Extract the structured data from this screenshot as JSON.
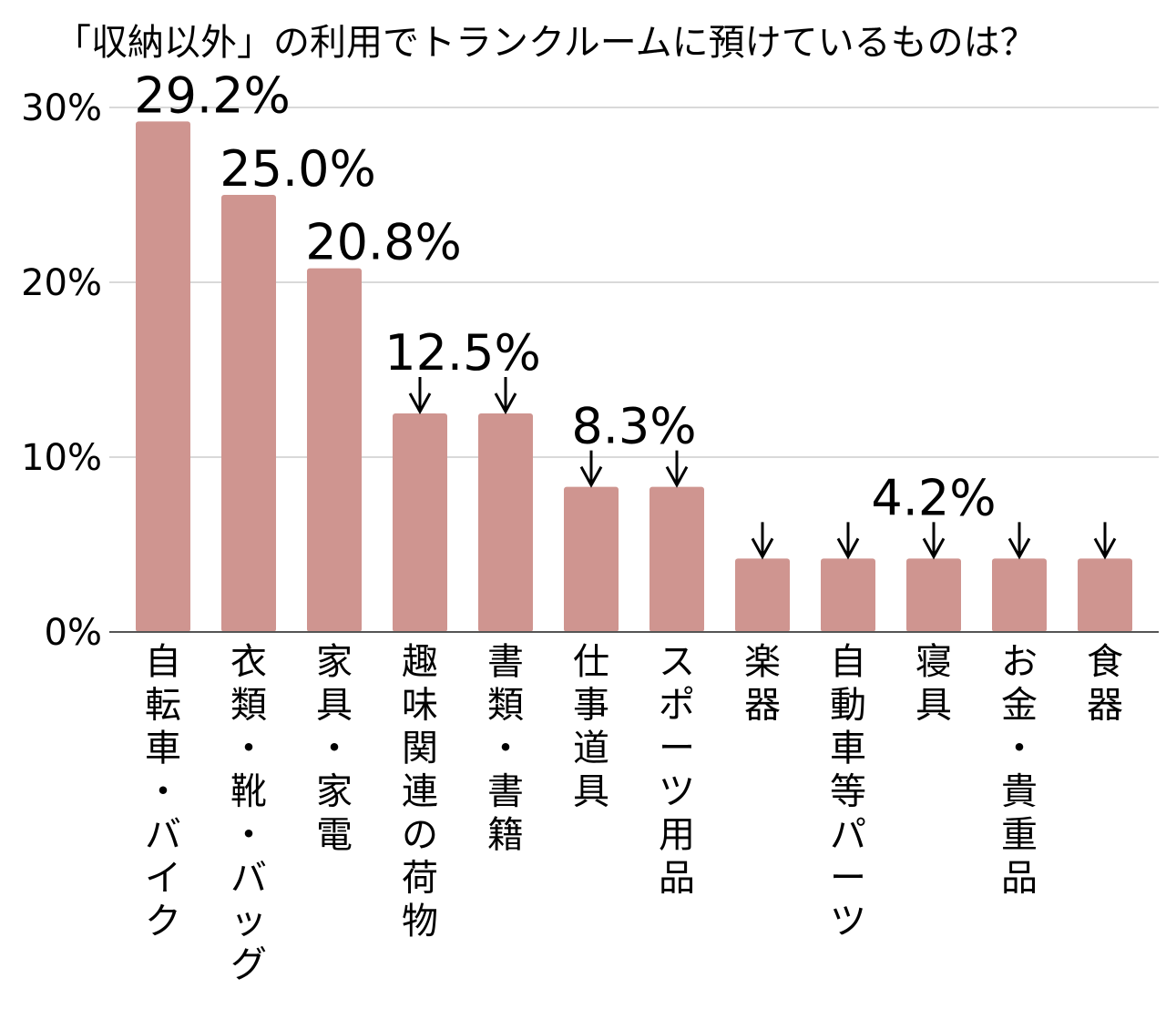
{
  "chart_data": {
    "type": "bar",
    "title": "「収納以外」の利用でトランクルームに預けているものは？",
    "xlabel": "",
    "ylabel": "",
    "ylim": [
      0,
      30
    ],
    "yticks": [
      0,
      10,
      20,
      30
    ],
    "ytick_labels": [
      "0%",
      "10%",
      "20%",
      "30%"
    ],
    "grid": true,
    "legend": "none",
    "bar_color": "#cf9590",
    "grid_color": "#d9d9d9",
    "axis_color": "#555555",
    "categories": [
      "自転車・バイク",
      "衣類・靴・バッグ",
      "家具・家電",
      "趣味関連の荷物",
      "書類・書籍",
      "仕事道具",
      "スポーツ用品",
      "楽器",
      "自動車等パーツ",
      "寝具",
      "お金・貴重品",
      "食器"
    ],
    "values": [
      29.2,
      25.0,
      20.8,
      12.5,
      12.5,
      8.3,
      8.3,
      4.2,
      4.2,
      4.2,
      4.2,
      4.2
    ],
    "value_labels": [
      {
        "text": "29.2%",
        "bars": [
          0
        ]
      },
      {
        "text": "25.0%",
        "bars": [
          1
        ]
      },
      {
        "text": "20.8%",
        "bars": [
          2
        ]
      },
      {
        "text": "12.5%",
        "bars": [
          3,
          4
        ],
        "arrows": true
      },
      {
        "text": "8.3%",
        "bars": [
          5,
          6
        ],
        "arrows": true
      },
      {
        "text": "4.2%",
        "bars": [
          7,
          8,
          9,
          10,
          11
        ],
        "arrows": true
      }
    ]
  }
}
